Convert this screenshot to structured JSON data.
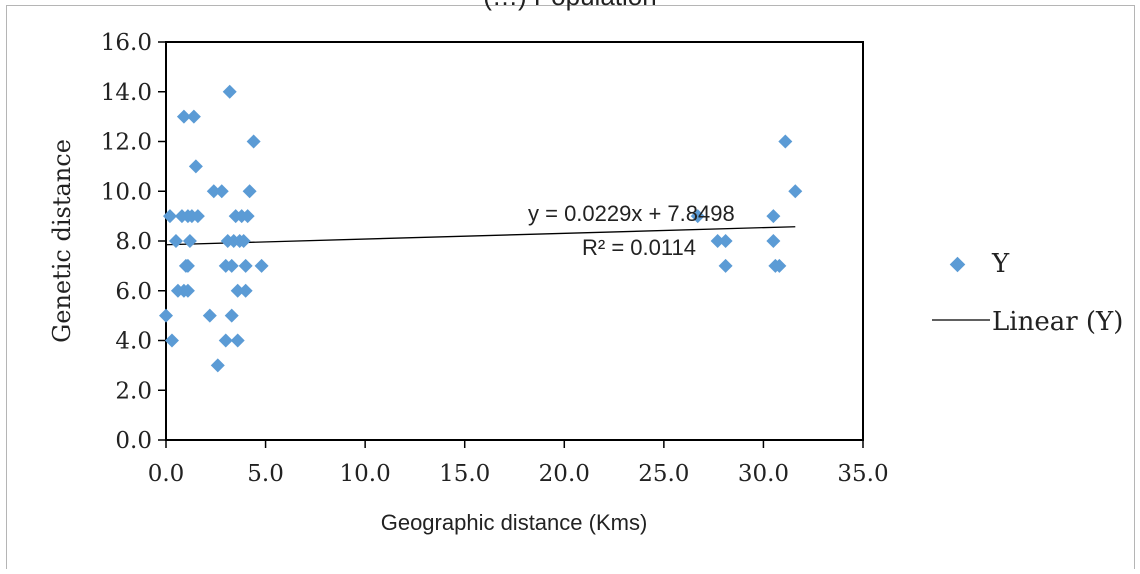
{
  "header_fragment": "(…) Population",
  "chart_data": {
    "type": "scatter",
    "title": "",
    "xlabel": "Geographic distance (Kms)",
    "ylabel": "Genetic distance",
    "xlim": [
      0,
      35
    ],
    "ylim": [
      0,
      16
    ],
    "xticks": [
      "0.0",
      "5.0",
      "10.0",
      "15.0",
      "20.0",
      "25.0",
      "30.0",
      "35.0"
    ],
    "yticks": [
      "0.0",
      "2.0",
      "4.0",
      "6.0",
      "8.0",
      "10.0",
      "12.0",
      "14.0",
      "16.0"
    ],
    "grid": false,
    "legend_position": "right",
    "series": [
      {
        "name": "Y",
        "marker": "diamond",
        "color": "#5b9bd5",
        "points": [
          [
            0.0,
            5
          ],
          [
            0.2,
            9
          ],
          [
            0.3,
            4
          ],
          [
            0.5,
            8
          ],
          [
            0.6,
            6
          ],
          [
            0.8,
            9
          ],
          [
            0.9,
            13
          ],
          [
            0.9,
            6
          ],
          [
            1.0,
            7
          ],
          [
            1.1,
            7
          ],
          [
            1.1,
            6
          ],
          [
            1.1,
            9
          ],
          [
            1.2,
            8
          ],
          [
            1.3,
            9
          ],
          [
            1.4,
            13
          ],
          [
            1.5,
            11
          ],
          [
            1.6,
            9
          ],
          [
            2.2,
            5
          ],
          [
            2.4,
            10
          ],
          [
            2.6,
            3
          ],
          [
            2.8,
            10
          ],
          [
            3.0,
            4
          ],
          [
            3.0,
            7
          ],
          [
            3.1,
            8
          ],
          [
            3.2,
            14
          ],
          [
            3.3,
            5
          ],
          [
            3.3,
            7
          ],
          [
            3.4,
            8
          ],
          [
            3.5,
            9
          ],
          [
            3.6,
            6
          ],
          [
            3.6,
            4
          ],
          [
            3.7,
            8
          ],
          [
            3.8,
            9
          ],
          [
            3.9,
            8
          ],
          [
            4.0,
            6
          ],
          [
            4.0,
            7
          ],
          [
            4.1,
            9
          ],
          [
            4.2,
            10
          ],
          [
            4.4,
            12
          ],
          [
            4.8,
            7
          ],
          [
            26.7,
            9
          ],
          [
            27.7,
            8
          ],
          [
            28.1,
            8
          ],
          [
            28.1,
            7
          ],
          [
            30.5,
            9
          ],
          [
            30.5,
            8
          ],
          [
            30.6,
            7
          ],
          [
            30.8,
            7
          ],
          [
            31.1,
            12
          ],
          [
            31.6,
            10
          ]
        ]
      },
      {
        "name": "Linear (Y)",
        "type": "trendline",
        "color": "#000000",
        "slope": 0.0229,
        "intercept": 7.8498,
        "x_range": [
          0.0,
          31.6
        ]
      }
    ],
    "annotations": {
      "equation": "y = 0.0229x + 7.8498",
      "r_squared": "R² = 0.0114"
    }
  }
}
